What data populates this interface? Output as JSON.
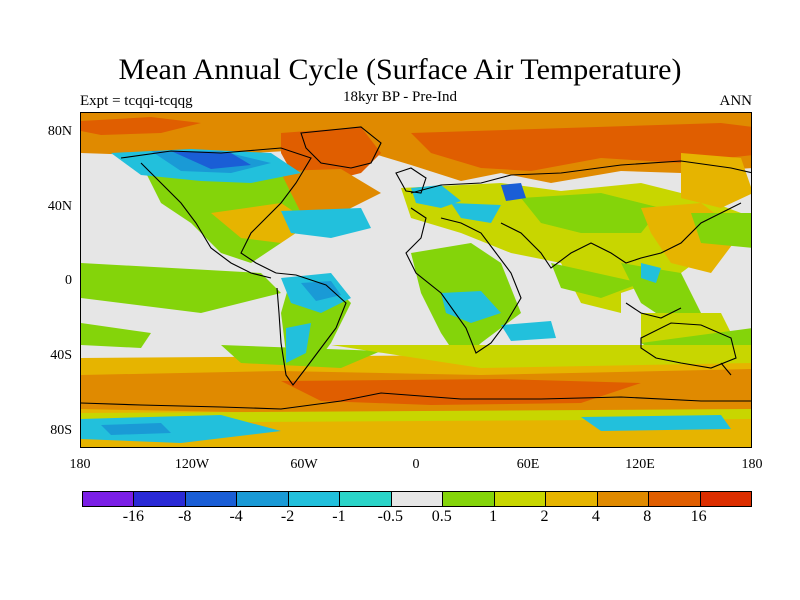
{
  "title": "Mean Annual Cycle (Surface Air Temperature)",
  "subtitle_left": "Expt = tcqqi-tcqqg",
  "subtitle_center": "18kyr BP - Pre-Ind",
  "subtitle_right": "ANN",
  "lat_labels": [
    "80N",
    "40N",
    "0",
    "40S",
    "80S"
  ],
  "lon_labels": [
    "180",
    "120W",
    "60W",
    "0",
    "60E",
    "120E",
    "180"
  ],
  "colorbar": {
    "labels": [
      "-16",
      "-8",
      "-4",
      "-2",
      "-1",
      "-0.5",
      "0.5",
      "1",
      "2",
      "4",
      "8",
      "16"
    ],
    "colors": [
      "#7b1fe6",
      "#2a2ad6",
      "#1a5ed6",
      "#1a9ad6",
      "#22c0dc",
      "#2ad4c8",
      "#e6e6e6",
      "#84d40a",
      "#c8d600",
      "#e6b400",
      "#e08a00",
      "#e05e00",
      "#dc2e00"
    ]
  },
  "map": {
    "background_color": "#e6e6e6",
    "coastline_color": "#000000"
  }
}
